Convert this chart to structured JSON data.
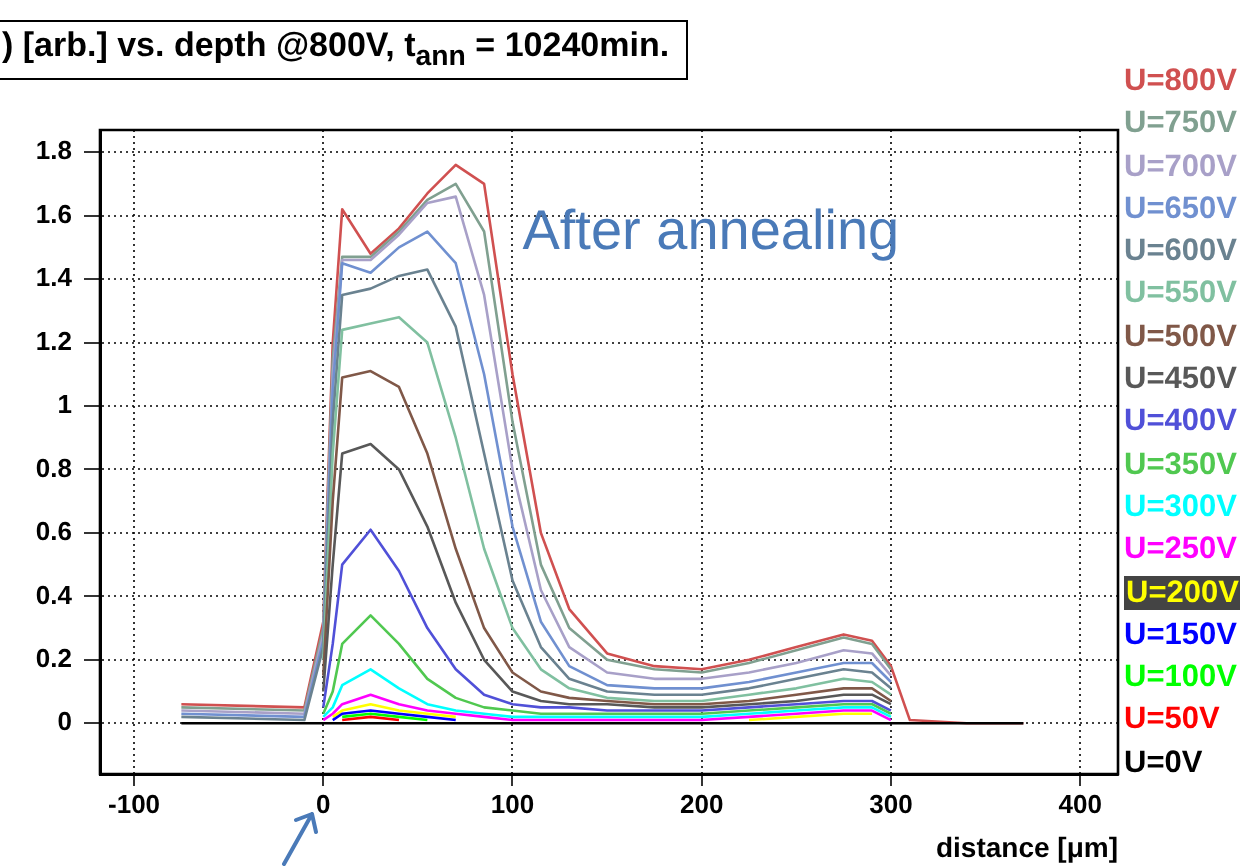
{
  "chart_data": {
    "type": "line",
    "title": ") [arb.] vs. depth @800V, t$_{ann}$ = 10240min.",
    "xlabel": "distance [μm]",
    "annotations": [
      "After annealing"
    ],
    "x": [
      -75,
      -10,
      0,
      5,
      10,
      25,
      40,
      55,
      70,
      85,
      100,
      115,
      130,
      150,
      175,
      200,
      225,
      250,
      275,
      290,
      300,
      310,
      340,
      370
    ],
    "xlim": [
      -118,
      420
    ],
    "xticks": [
      -100,
      0,
      100,
      200,
      300,
      400
    ],
    "ylim": [
      -0.16,
      1.87
    ],
    "yticks": [
      0,
      0.2,
      0.4,
      0.6,
      0.8,
      1,
      1.2,
      1.4,
      1.6,
      1.8
    ],
    "grid": true,
    "legend": "right",
    "marker": "none",
    "line_style": "solid",
    "series": [
      {
        "name": "U=800V",
        "color": "#d05050",
        "values": [
          0.06,
          0.05,
          0.32,
          1.2,
          1.62,
          1.48,
          1.56,
          1.67,
          1.76,
          1.7,
          1.1,
          0.6,
          0.36,
          0.22,
          0.18,
          0.17,
          0.2,
          0.24,
          0.28,
          0.26,
          0.18,
          0.01,
          0,
          0
        ]
      },
      {
        "name": "U=750V",
        "color": "#80a090",
        "values": [
          0.05,
          0.04,
          0.3,
          1.15,
          1.47,
          1.47,
          1.55,
          1.65,
          1.7,
          1.55,
          0.95,
          0.5,
          0.3,
          0.2,
          0.17,
          0.16,
          0.19,
          0.23,
          0.27,
          0.25,
          0.17,
          null,
          null,
          null
        ]
      },
      {
        "name": "U=700V",
        "color": "#a8a0c8",
        "values": [
          0.04,
          0.03,
          0.28,
          1.1,
          1.46,
          1.46,
          1.54,
          1.64,
          1.66,
          1.35,
          0.8,
          0.42,
          0.24,
          0.16,
          0.14,
          0.14,
          0.16,
          0.19,
          0.23,
          0.22,
          0.15,
          null,
          null,
          null
        ]
      },
      {
        "name": "U=650V",
        "color": "#7090d0",
        "values": [
          0.03,
          0.02,
          0.26,
          1.05,
          1.45,
          1.42,
          1.5,
          1.55,
          1.45,
          1.1,
          0.62,
          0.32,
          0.18,
          0.12,
          0.11,
          0.11,
          0.13,
          0.16,
          0.19,
          0.19,
          0.13,
          null,
          null,
          null
        ]
      },
      {
        "name": "U=600V",
        "color": "#6a8290",
        "values": [
          0.02,
          0.01,
          0.24,
          0.95,
          1.35,
          1.37,
          1.41,
          1.43,
          1.25,
          0.85,
          0.45,
          0.24,
          0.14,
          0.1,
          0.09,
          0.09,
          0.11,
          0.14,
          0.17,
          0.16,
          0.11,
          null,
          null,
          null
        ]
      },
      {
        "name": "U=550V",
        "color": "#80c0a0",
        "values": [
          null,
          null,
          0.2,
          0.85,
          1.24,
          1.26,
          1.28,
          1.2,
          0.9,
          0.55,
          0.3,
          0.17,
          0.11,
          0.08,
          0.07,
          0.07,
          0.09,
          0.11,
          0.14,
          0.13,
          0.09,
          null,
          null,
          null
        ]
      },
      {
        "name": "U=500V",
        "color": "#805848",
        "values": [
          null,
          null,
          0.15,
          0.7,
          1.09,
          1.11,
          1.06,
          0.85,
          0.55,
          0.3,
          0.16,
          0.1,
          0.08,
          0.07,
          0.06,
          0.06,
          0.07,
          0.09,
          0.11,
          0.11,
          0.07,
          null,
          null,
          null
        ]
      },
      {
        "name": "U=450V",
        "color": "#585858",
        "values": [
          null,
          null,
          0.1,
          0.5,
          0.85,
          0.88,
          0.8,
          0.62,
          0.38,
          0.2,
          0.1,
          0.07,
          0.06,
          0.06,
          0.05,
          0.05,
          0.06,
          0.07,
          0.09,
          0.09,
          0.06,
          null,
          null,
          null
        ]
      },
      {
        "name": "U=400V",
        "color": "#5050d8",
        "values": [
          null,
          null,
          0.05,
          0.25,
          0.5,
          0.61,
          0.48,
          0.3,
          0.17,
          0.09,
          0.06,
          0.05,
          0.05,
          0.04,
          0.04,
          0.04,
          0.05,
          0.06,
          0.07,
          0.07,
          0.04,
          null,
          null,
          null
        ]
      },
      {
        "name": "U=350V",
        "color": "#50c850",
        "values": [
          null,
          null,
          0.03,
          0.1,
          0.25,
          0.34,
          0.25,
          0.14,
          0.08,
          0.05,
          0.04,
          0.03,
          0.03,
          0.03,
          0.03,
          0.03,
          0.04,
          0.05,
          0.06,
          0.06,
          0.03,
          null,
          null,
          null
        ]
      },
      {
        "name": "U=300V",
        "color": "#00ffff",
        "values": [
          null,
          null,
          0.02,
          0.05,
          0.12,
          0.17,
          0.11,
          0.06,
          0.04,
          0.03,
          0.02,
          0.02,
          0.02,
          0.02,
          0.02,
          0.02,
          0.03,
          0.04,
          0.05,
          0.05,
          0.02,
          null,
          null,
          null
        ]
      },
      {
        "name": "U=250V",
        "color": "#ff00ff",
        "values": [
          null,
          null,
          0.01,
          0.03,
          0.06,
          0.09,
          0.06,
          0.04,
          0.03,
          0.02,
          0.01,
          0.01,
          0.01,
          0.01,
          0.01,
          0.01,
          0.02,
          0.03,
          0.04,
          0.04,
          0.01,
          null,
          null,
          null
        ]
      },
      {
        "name": "U=200V",
        "color": "#ffff00",
        "values": [
          null,
          null,
          null,
          0.02,
          0.04,
          0.06,
          0.04,
          0.03,
          0.02,
          null,
          null,
          null,
          null,
          null,
          null,
          null,
          0.01,
          0.02,
          0.03,
          0.03,
          null,
          null,
          null,
          null
        ]
      },
      {
        "name": "U=150V",
        "color": "#0000ff",
        "values": [
          null,
          null,
          null,
          0.01,
          0.03,
          0.04,
          0.03,
          0.02,
          0.01,
          null,
          null,
          null,
          null,
          null,
          null,
          null,
          null,
          null,
          null,
          null,
          null,
          null,
          null,
          null
        ]
      },
      {
        "name": "U=100V",
        "color": "#00ff00",
        "values": [
          null,
          null,
          null,
          null,
          0.02,
          0.03,
          0.02,
          0.01,
          null,
          null,
          null,
          null,
          null,
          null,
          null,
          null,
          null,
          null,
          null,
          null,
          null,
          null,
          null,
          null
        ]
      },
      {
        "name": "U=50V",
        "color": "#ff0000",
        "values": [
          null,
          null,
          null,
          null,
          0.01,
          0.02,
          0.01,
          null,
          null,
          null,
          null,
          null,
          null,
          null,
          null,
          null,
          null,
          null,
          null,
          null,
          null,
          null,
          null,
          null
        ]
      },
      {
        "name": "U=0V",
        "color": "#000000",
        "values": [
          0,
          0,
          0,
          0,
          0,
          0,
          0,
          0,
          0,
          0,
          0,
          0,
          0,
          0,
          0,
          0,
          0,
          0,
          0,
          0,
          0,
          0,
          0,
          0
        ]
      }
    ]
  }
}
